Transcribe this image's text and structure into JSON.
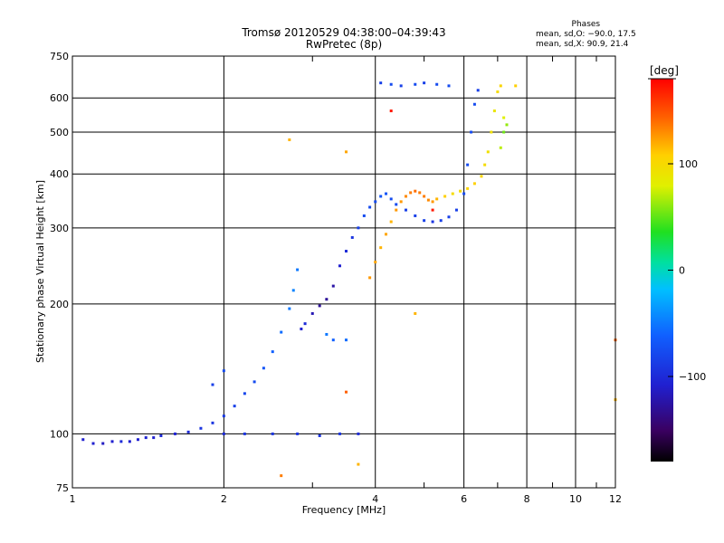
{
  "header": {
    "title": "Tromsø 20120529 04:38:00–04:39:43",
    "subtitle": "RwPretec (8p)"
  },
  "stats": {
    "heading": "Phases",
    "line_o": "mean, sd,O: −90.0, 17.5",
    "line_x": "mean, sd,X:  90.9, 21.4"
  },
  "colorbar": {
    "label": "[deg]",
    "ticks": [
      "100",
      "0",
      "−100"
    ],
    "tick_values": [
      100,
      0,
      -100
    ],
    "range": [
      -180,
      180
    ]
  },
  "colors": {
    "o_trace": "#1a33d9",
    "x_trace": "#f0c020"
  },
  "chart_data": {
    "type": "scatter",
    "xlabel": "Frequency [MHz]",
    "ylabel": "Stationary phase Virtual Height [km]",
    "x_scale": "log",
    "y_scale": "log",
    "xlim": [
      1,
      12
    ],
    "ylim": [
      75,
      750
    ],
    "x_ticks": [
      1,
      2,
      4,
      6,
      8,
      10,
      12
    ],
    "x_tick_labels": [
      "1",
      "2",
      "4",
      "6",
      "8",
      "10",
      "12"
    ],
    "y_ticks": [
      75,
      100,
      200,
      300,
      400,
      500,
      600,
      750
    ],
    "y_tick_labels": [
      "75",
      "100",
      "200",
      "300",
      "400",
      "500",
      "600",
      "750"
    ],
    "grid": true,
    "color_encodes": "phase [deg]",
    "series": [
      {
        "trace": [
          [
            1.05,
            97,
            -110
          ],
          [
            1.1,
            95,
            -110
          ],
          [
            1.15,
            95,
            -115
          ],
          [
            1.2,
            96,
            -110
          ],
          [
            1.25,
            96,
            -105
          ],
          [
            1.3,
            96,
            -110
          ],
          [
            1.35,
            97,
            -110
          ],
          [
            1.4,
            98,
            -108
          ],
          [
            1.45,
            98,
            -110
          ],
          [
            1.5,
            99,
            -105
          ],
          [
            1.6,
            100,
            -108
          ],
          [
            1.7,
            101,
            -105
          ],
          [
            1.8,
            103,
            -100
          ],
          [
            1.9,
            106,
            -100
          ],
          [
            2.0,
            110,
            -98
          ],
          [
            2.1,
            116,
            -95
          ],
          [
            2.2,
            124,
            -92
          ],
          [
            2.3,
            132,
            -90
          ],
          [
            2.4,
            142,
            -85
          ],
          [
            2.5,
            155,
            -80
          ],
          [
            2.6,
            172,
            -75
          ],
          [
            2.7,
            195,
            -70
          ],
          [
            2.75,
            215,
            -65
          ],
          [
            2.8,
            240,
            -70
          ],
          [
            2.85,
            175,
            -110
          ],
          [
            2.9,
            180,
            -105
          ],
          [
            3.0,
            190,
            -120
          ],
          [
            3.1,
            198,
            -130
          ],
          [
            3.2,
            205,
            -130
          ],
          [
            3.3,
            220,
            -125
          ],
          [
            3.4,
            245,
            -110
          ],
          [
            3.5,
            265,
            -105
          ],
          [
            3.6,
            285,
            -100
          ],
          [
            3.7,
            300,
            -95
          ],
          [
            3.8,
            320,
            -90
          ],
          [
            3.9,
            335,
            -90
          ],
          [
            4.0,
            345,
            -90
          ],
          [
            4.1,
            355,
            -85
          ],
          [
            4.2,
            360,
            -85
          ],
          [
            4.3,
            350,
            -90
          ],
          [
            4.4,
            340,
            -90
          ],
          [
            4.6,
            330,
            -95
          ],
          [
            4.8,
            320,
            -95
          ],
          [
            5.0,
            312,
            -95
          ],
          [
            5.2,
            310,
            -100
          ],
          [
            5.4,
            312,
            -95
          ],
          [
            5.6,
            318,
            -95
          ],
          [
            5.8,
            330,
            -95
          ],
          [
            6.0,
            360,
            -90
          ],
          [
            6.1,
            420,
            -90
          ],
          [
            6.2,
            500,
            -90
          ],
          [
            6.3,
            580,
            -90
          ],
          [
            6.4,
            625,
            -95
          ],
          [
            2.0,
            100,
            -105
          ],
          [
            2.2,
            100,
            -100
          ],
          [
            2.5,
            100,
            -100
          ],
          [
            2.8,
            100,
            -100
          ],
          [
            3.1,
            99,
            -100
          ],
          [
            3.4,
            100,
            -100
          ],
          [
            3.7,
            100,
            -105
          ],
          [
            4.1,
            650,
            -95
          ],
          [
            4.3,
            645,
            -90
          ],
          [
            4.5,
            640,
            -95
          ],
          [
            4.8,
            645,
            -90
          ],
          [
            5.0,
            650,
            -95
          ],
          [
            5.3,
            645,
            -90
          ],
          [
            5.6,
            640,
            -90
          ],
          [
            1.9,
            130,
            -95
          ],
          [
            2.0,
            140,
            -90
          ],
          [
            3.2,
            170,
            -70
          ],
          [
            3.5,
            165,
            -75
          ],
          [
            3.3,
            165,
            -80
          ]
        ]
      },
      {
        "trace": [
          [
            3.9,
            230,
            120
          ],
          [
            4.0,
            250,
            115
          ],
          [
            4.1,
            270,
            110
          ],
          [
            4.2,
            290,
            115
          ],
          [
            4.3,
            310,
            110
          ],
          [
            4.4,
            330,
            120
          ],
          [
            4.5,
            345,
            120
          ],
          [
            4.6,
            355,
            125
          ],
          [
            4.7,
            362,
            130
          ],
          [
            4.8,
            365,
            135
          ],
          [
            4.9,
            362,
            130
          ],
          [
            5.0,
            355,
            130
          ],
          [
            5.1,
            348,
            125
          ],
          [
            5.2,
            345,
            120
          ],
          [
            5.3,
            350,
            110
          ],
          [
            5.5,
            355,
            100
          ],
          [
            5.7,
            360,
            90
          ],
          [
            5.9,
            365,
            90
          ],
          [
            6.1,
            370,
            95
          ],
          [
            6.3,
            380,
            100
          ],
          [
            6.5,
            395,
            95
          ],
          [
            6.6,
            420,
            90
          ],
          [
            6.7,
            450,
            85
          ],
          [
            6.8,
            500,
            85
          ],
          [
            6.9,
            560,
            80
          ],
          [
            7.0,
            620,
            90
          ],
          [
            7.1,
            640,
            95
          ],
          [
            7.2,
            500,
            40
          ],
          [
            7.3,
            520,
            50
          ],
          [
            7.1,
            460,
            60
          ],
          [
            7.2,
            540,
            70
          ],
          [
            2.7,
            480,
            110
          ],
          [
            3.5,
            450,
            115
          ],
          [
            4.3,
            560,
            170
          ],
          [
            4.8,
            190,
            110
          ],
          [
            5.2,
            330,
            170
          ],
          [
            12.0,
            165,
            140
          ],
          [
            12.0,
            120,
            110
          ],
          [
            7.6,
            640,
            100
          ],
          [
            3.5,
            125,
            140
          ],
          [
            2.6,
            80,
            130
          ],
          [
            3.7,
            85,
            110
          ]
        ]
      }
    ]
  }
}
